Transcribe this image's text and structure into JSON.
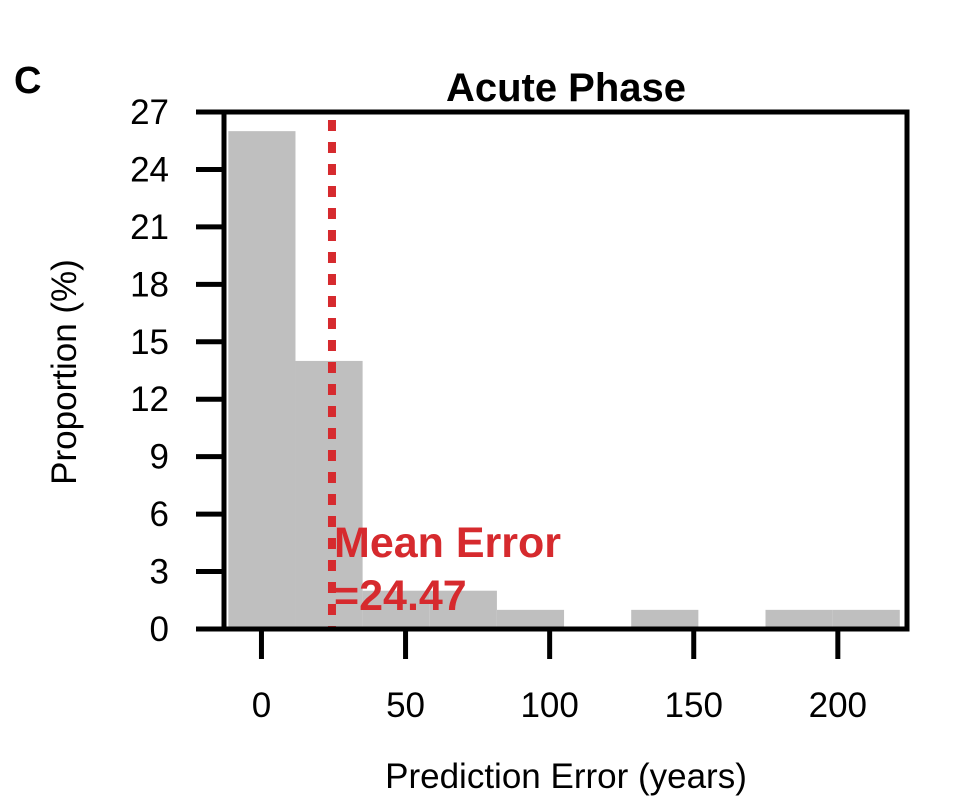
{
  "panel_label": "C",
  "colors": {
    "bar": "#bfbfbf",
    "mean_line": "#d62a2e",
    "axis": "#000000"
  },
  "chart_data": {
    "type": "bar",
    "title": "Acute Phase",
    "xlabel": "Prediction Error (years)",
    "ylabel": "Proportion (%)",
    "xlim": [
      -13,
      224
    ],
    "ylim": [
      0,
      27
    ],
    "xticks": [
      0,
      50,
      100,
      150,
      200
    ],
    "yticks": [
      0,
      3,
      6,
      9,
      12,
      15,
      18,
      21,
      24,
      27
    ],
    "bins": [
      {
        "x0": -11.5,
        "x1": 11.8,
        "value": 26
      },
      {
        "x0": 11.8,
        "x1": 35.1,
        "value": 14
      },
      {
        "x0": 35.1,
        "x1": 58.4,
        "value": 2
      },
      {
        "x0": 58.4,
        "x1": 81.7,
        "value": 2
      },
      {
        "x0": 81.7,
        "x1": 105.0,
        "value": 1
      },
      {
        "x0": 128.3,
        "x1": 151.6,
        "value": 1
      },
      {
        "x0": 174.9,
        "x1": 198.2,
        "value": 1
      },
      {
        "x0": 198.2,
        "x1": 221.5,
        "value": 1
      }
    ],
    "mean_line": {
      "x": 24.47
    },
    "annotation": {
      "line1": "Mean Error",
      "line2": "=24.47"
    }
  }
}
